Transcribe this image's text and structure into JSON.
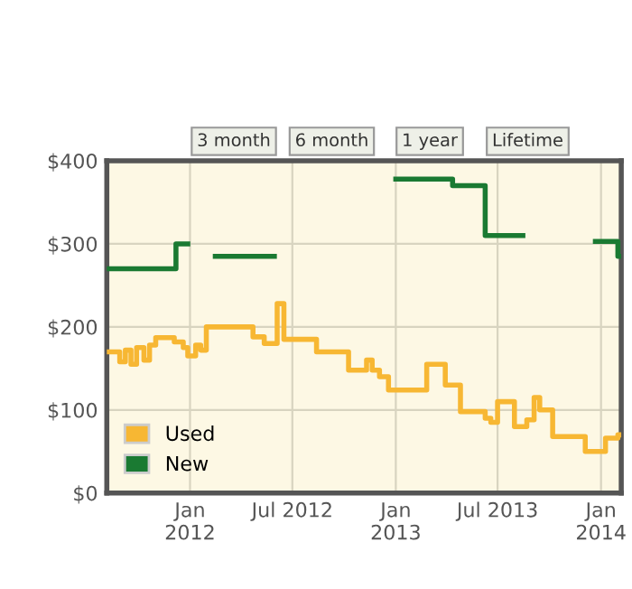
{
  "chart_data": {
    "type": "step",
    "annotations": [
      "3 month",
      "6 month",
      "1 year",
      "Lifetime"
    ],
    "series": [
      {
        "name": "Used",
        "color": "#f7b733",
        "x": [
          "2011-08-06",
          "2011-08-29",
          "2011-09-08",
          "2011-09-18",
          "2011-09-28",
          "2011-10-11",
          "2011-10-21",
          "2011-11-01",
          "2011-12-04",
          "2011-12-20",
          "2011-12-28",
          "2012-01-11",
          "2012-01-20",
          "2012-01-30",
          "2012-04-22",
          "2012-05-12",
          "2012-06-04",
          "2012-06-16",
          "2012-08-13",
          "2012-10-09",
          "2012-11-10",
          "2012-11-20",
          "2012-12-03",
          "2012-12-19",
          "2013-02-25",
          "2013-03-30",
          "2013-04-26",
          "2013-06-09",
          "2013-06-19",
          "2013-07-01",
          "2013-07-31",
          "2013-08-22",
          "2013-09-04",
          "2013-09-14",
          "2013-10-07",
          "2013-12-04",
          "2014-01-09",
          "2014-01-31",
          "2014-02-06"
        ],
        "values": [
          170,
          158,
          172,
          155,
          175,
          160,
          178,
          187,
          182,
          175,
          165,
          178,
          172,
          200,
          188,
          180,
          228,
          185,
          170,
          148,
          160,
          148,
          140,
          124,
          155,
          130,
          98,
          90,
          85,
          110,
          80,
          88,
          115,
          100,
          68,
          50,
          66,
          70,
          70
        ]
      },
      {
        "name": "New",
        "color": "#1a7a32",
        "x": [
          "2011-08-06",
          "2011-12-07",
          "2011-12-28",
          "2012-02-15",
          "2012-05-30",
          "2013-01-01",
          "2013-04-12",
          "2013-06-09",
          "2013-08-15",
          "2013-12-22",
          "2014-01-31",
          "2014-02-06"
        ],
        "values": [
          270,
          300,
          null,
          285,
          null,
          378,
          370,
          310,
          null,
          303,
          285,
          285
        ]
      }
    ],
    "xlim": [
      "2011-08-06",
      "2014-02-06"
    ],
    "xticks": [
      {
        "value": "2012-01-01",
        "label": "Jan\n2012"
      },
      {
        "value": "2012-07-01",
        "label": "Jul 2012"
      },
      {
        "value": "2013-01-01",
        "label": "Jan\n2013"
      },
      {
        "value": "2013-07-01",
        "label": "Jul 2013"
      },
      {
        "value": "2014-01-01",
        "label": "Jan\n2014"
      }
    ],
    "ylim": [
      0,
      400
    ],
    "yticks": [
      {
        "value": 0,
        "label": "$0"
      },
      {
        "value": 100,
        "label": "$100"
      },
      {
        "value": 200,
        "label": "$200"
      },
      {
        "value": 300,
        "label": "$300"
      },
      {
        "value": 400,
        "label": "$400"
      }
    ],
    "grid": true,
    "legend": "bottom left"
  }
}
